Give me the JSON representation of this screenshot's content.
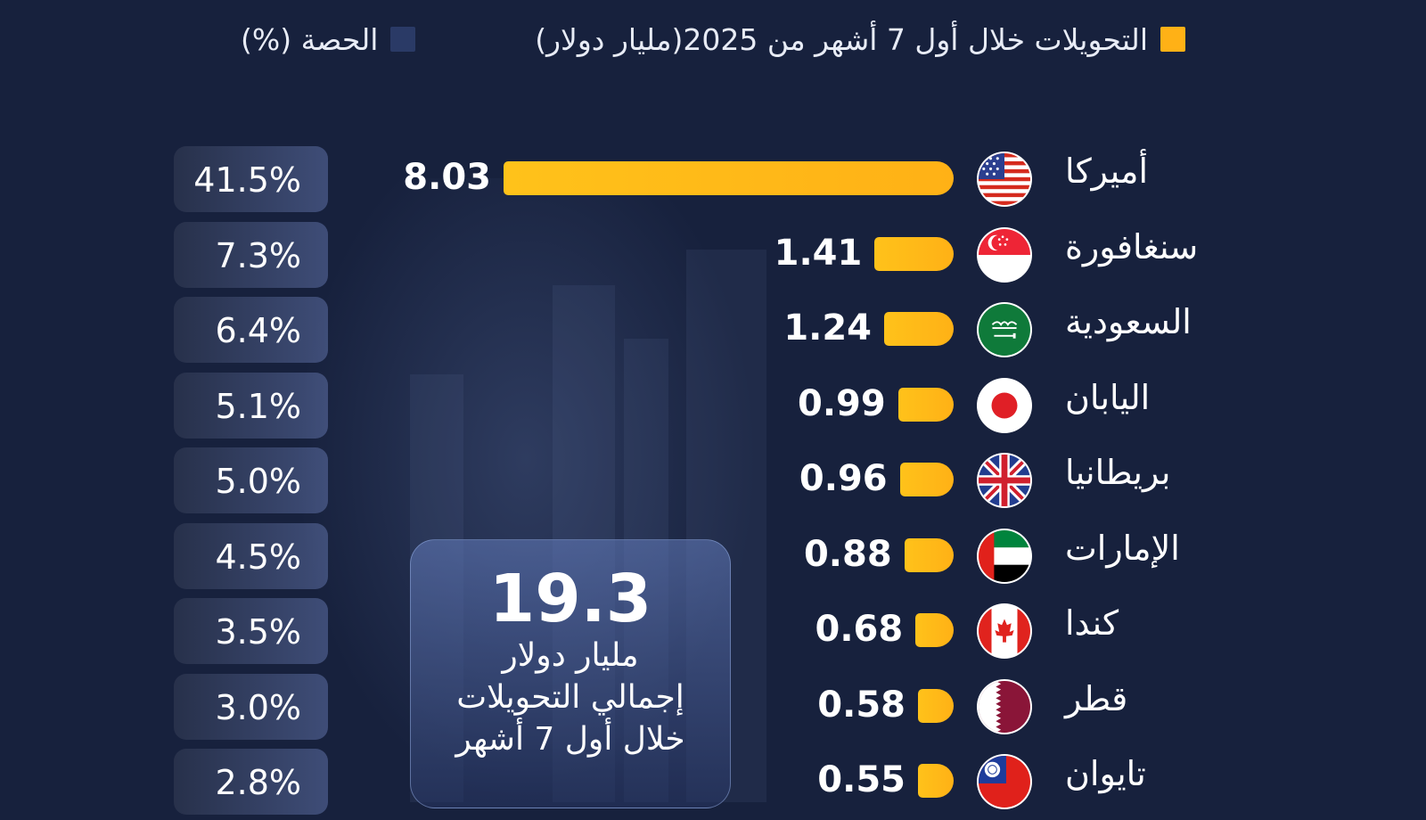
{
  "legend": {
    "transfers_label": "التحويلات خلال أول 7 أشهر من 2025(مليار دولار)",
    "share_label": "الحصة (%)",
    "transfers_color": "#ffb116",
    "share_color": "#2a3a66"
  },
  "total": {
    "value": "19.3",
    "line1": "مليار دولار",
    "line2": "إجمالي التحويلات",
    "line3": "خلال أول 7 أشهر"
  },
  "chart_data": {
    "type": "bar",
    "orientation": "horizontal",
    "categories": [
      "أميركا",
      "سنغافورة",
      "السعودية",
      "اليابان",
      "بريطانيا",
      "الإمارات",
      "كندا",
      "قطر",
      "تايوان"
    ],
    "series": [
      {
        "name": "التحويلات خلال أول 7 أشهر من 2025(مليار دولار)",
        "values": [
          8.03,
          1.41,
          1.24,
          0.99,
          0.96,
          0.88,
          0.68,
          0.58,
          0.55
        ]
      },
      {
        "name": "الحصة (%)",
        "values": [
          41.5,
          7.3,
          6.4,
          5.1,
          5.0,
          4.5,
          3.5,
          3.0,
          2.8
        ]
      }
    ],
    "value_labels": [
      "8.03",
      "1.41",
      "1.24",
      "0.99",
      "0.96",
      "0.88",
      "0.68",
      "0.58",
      "0.55"
    ],
    "share_labels": [
      "41.5%",
      "7.3%",
      "6.4%",
      "5.1%",
      "5.0%",
      "4.5%",
      "3.5%",
      "3.0%",
      "2.8%"
    ],
    "flags": [
      "us-flag-icon",
      "singapore-flag-icon",
      "saudi-flag-icon",
      "japan-flag-icon",
      "uk-flag-icon",
      "uae-flag-icon",
      "canada-flag-icon",
      "qatar-flag-icon",
      "taiwan-flag-icon"
    ],
    "bar_color": "#ffb116"
  }
}
